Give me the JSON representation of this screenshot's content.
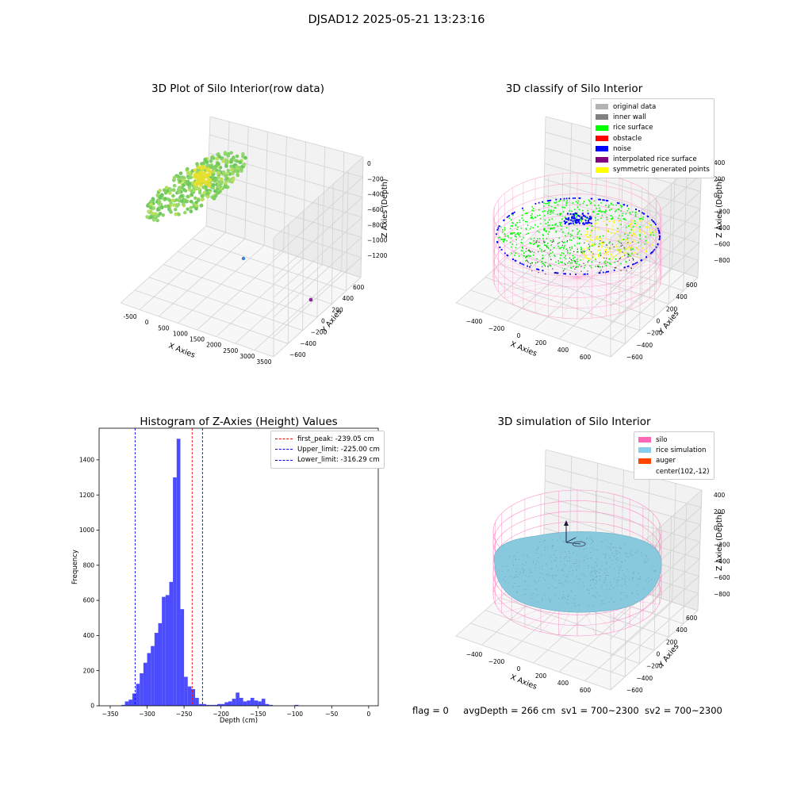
{
  "suptitle": "DJSAD12 2025-05-21 13:23:16",
  "panel_tl": {
    "title": "3D Plot of Silo Interior(row data)",
    "xlabel": "X Axies",
    "ylabel": "Y Axies",
    "zlabel": "Z Axies (Depth)",
    "xticks": [
      "-500",
      "0",
      "500",
      "1000",
      "1500",
      "2000",
      "2500",
      "3000",
      "3500"
    ],
    "yticks": [
      "600",
      "400",
      "200",
      "0",
      "−200",
      "−400",
      "−600"
    ],
    "zticks": [
      "0",
      "−200",
      "−400",
      "−600",
      "−800",
      "−1000",
      "−1200"
    ]
  },
  "panel_tr": {
    "title": "3D classify of Silo Interior",
    "xlabel": "X Axies",
    "ylabel": "Y Axies",
    "zlabel": "Z Axies (Depth)",
    "xticks": [
      "−400",
      "−200",
      "0",
      "200",
      "400",
      "600"
    ],
    "yticks": [
      "600",
      "400",
      "200",
      "0",
      "−200",
      "−400",
      "−600"
    ],
    "zticks": [
      "400",
      "200",
      "0",
      "−200",
      "−400",
      "−600",
      "−800"
    ],
    "legend": [
      {
        "label": "original data",
        "color": "#b3b3b3"
      },
      {
        "label": "inner wall",
        "color": "#808080"
      },
      {
        "label": "rice surface",
        "color": "#00ff00"
      },
      {
        "label": "obstacle",
        "color": "#ff0000"
      },
      {
        "label": "noise",
        "color": "#0000ff"
      },
      {
        "label": "interpolated rice surface",
        "color": "#800080"
      },
      {
        "label": "symmetric generated points",
        "color": "#ffff00"
      }
    ]
  },
  "panel_br": {
    "title": "3D simulation of Silo Interior",
    "xlabel": "X Axies",
    "ylabel": "Y Axies",
    "zlabel": "Z Axies (Depth)",
    "xticks": [
      "−400",
      "−200",
      "0",
      "200",
      "400",
      "600"
    ],
    "yticks": [
      "600",
      "400",
      "200",
      "0",
      "−200",
      "−400",
      "−600"
    ],
    "zticks": [
      "400",
      "200",
      "0",
      "−200",
      "−400",
      "−600",
      "−800"
    ],
    "legend": [
      {
        "label": "silo",
        "color": "#ff69b4"
      },
      {
        "label": "rice simulation",
        "color": "#87ceeb"
      },
      {
        "label": "auger",
        "color": "#ff4500"
      },
      {
        "label": "center(102,-12)",
        "color": "#ffffff"
      }
    ]
  },
  "status": {
    "flag": "flag = 0",
    "avg": "avgDepth = 266 cm",
    "sv1": "sv1 = 700~2300",
    "sv2": "sv2 = 700~2300"
  },
  "chart_data": [
    {
      "type": "bar",
      "title": "Histogram of Z-Axies (Height) Values",
      "xlabel": "Depth (cm)",
      "ylabel": "Frequency",
      "xlim": [
        -365,
        13
      ],
      "ylim": [
        0,
        1580
      ],
      "xticks": [
        -350,
        -300,
        -250,
        -200,
        -150,
        -100,
        -50,
        0
      ],
      "yticks": [
        0,
        200,
        400,
        600,
        800,
        1000,
        1200,
        1400
      ],
      "bar_color": "#4b4bff",
      "bin_width": 5,
      "bin_starts": [
        -340,
        -335,
        -330,
        -325,
        -320,
        -315,
        -310,
        -305,
        -300,
        -295,
        -290,
        -285,
        -280,
        -275,
        -270,
        -265,
        -260,
        -255,
        -250,
        -245,
        -240,
        -235,
        -230,
        -225,
        -220,
        -215,
        -210,
        -205,
        -200,
        -195,
        -190,
        -185,
        -180,
        -175,
        -170,
        -165,
        -160,
        -155,
        -150,
        -145,
        -140,
        -135,
        -130,
        -125,
        -120,
        -115,
        -110,
        -105,
        -100,
        -95,
        -90,
        -85,
        -80,
        -75,
        -70,
        -65,
        -60,
        -55,
        -50,
        -45,
        -40,
        -35,
        -30,
        -25,
        -20,
        -15,
        -10,
        -5,
        0
      ],
      "values": [
        0,
        5,
        25,
        35,
        70,
        125,
        185,
        245,
        300,
        340,
        415,
        470,
        620,
        630,
        705,
        1300,
        1520,
        550,
        165,
        110,
        95,
        45,
        10,
        10,
        5,
        5,
        5,
        10,
        10,
        20,
        25,
        40,
        75,
        45,
        25,
        30,
        45,
        30,
        25,
        40,
        10,
        5,
        0,
        0,
        0,
        0,
        0,
        0,
        5,
        0,
        0,
        0,
        0,
        0,
        0,
        0,
        0,
        0,
        0,
        0,
        0,
        0,
        0,
        0,
        0,
        0,
        0,
        0,
        0
      ],
      "vlines": [
        {
          "x": -239.05,
          "color": "#ff0000",
          "label": "first_peak: -239.05 cm"
        },
        {
          "x": -225.0,
          "color": "#0000ff",
          "label": "Upper_limit: -225.00 cm"
        },
        {
          "x": -316.29,
          "color": "#0000ff",
          "label": "Lower_limit: -316.29 cm"
        }
      ],
      "legend_position": "upper-right"
    }
  ]
}
